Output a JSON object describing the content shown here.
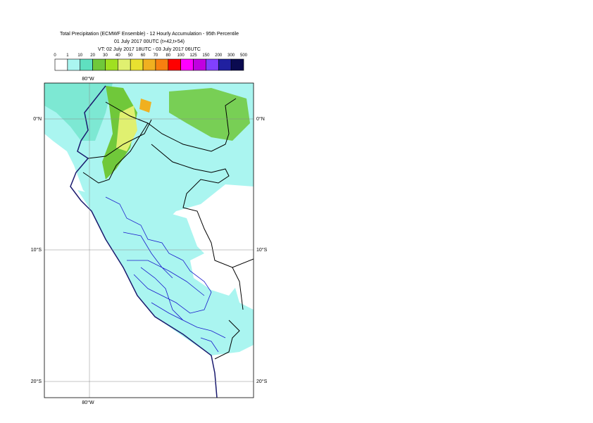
{
  "header": {
    "title": "Total Precipitation (ECMWF Ensemble) - 12 Hourly Accumulation - 95th Percentile",
    "run": "01 July 2017 00UTC (t+42,t+54)",
    "valid": "VT: 02 July 2017 18UTC - 03 July 2017 06UTC"
  },
  "legend": {
    "labels": [
      0,
      1,
      10,
      20,
      30,
      40,
      50,
      60,
      70,
      80,
      100,
      125,
      150,
      200,
      300,
      500
    ],
    "colors": [
      "#ffffff",
      "#aaf5f0",
      "#5fe0c0",
      "#70c83a",
      "#a0e020",
      "#e0f070",
      "#e8e030",
      "#f0b020",
      "#f88010",
      "#ff0000",
      "#ff00ff",
      "#c000e0",
      "#8040ff",
      "#2020a0",
      "#0a0a50"
    ]
  },
  "map": {
    "lon_labels": [
      "80°W"
    ],
    "lat_labels": [
      "0°N",
      "10°S",
      "20°S"
    ]
  }
}
